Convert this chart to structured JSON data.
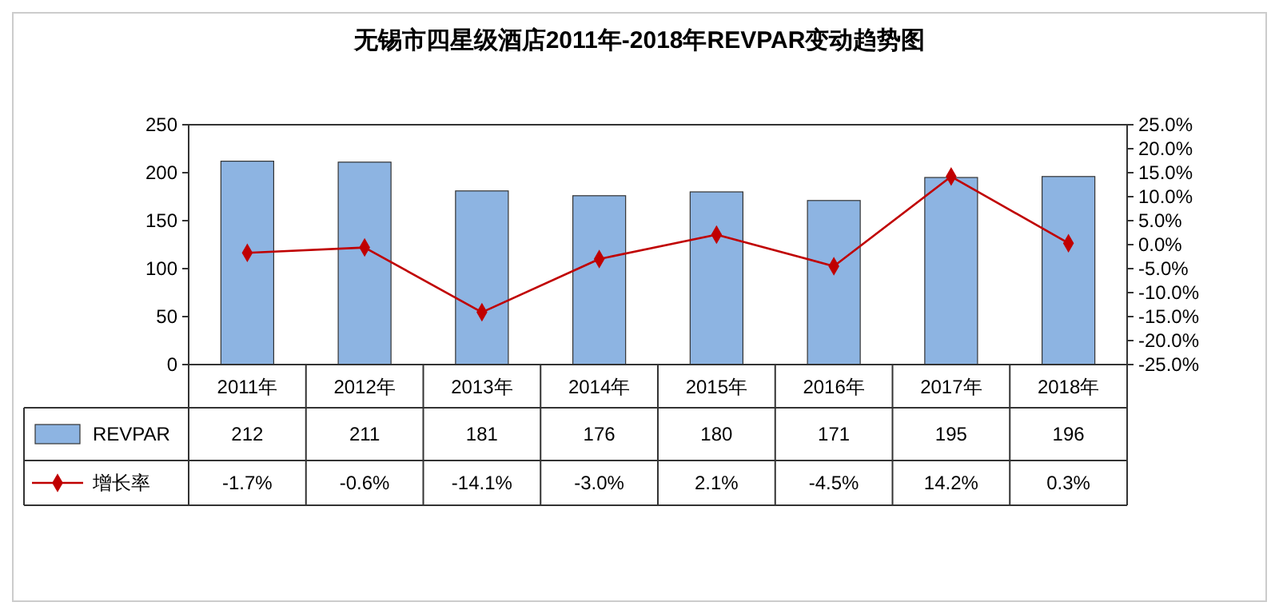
{
  "chart_data": {
    "type": "bar",
    "title": "无锡市四星级酒店2011年-2018年REVPAR变动趋势图",
    "categories": [
      "2011年",
      "2012年",
      "2013年",
      "2014年",
      "2015年",
      "2016年",
      "2017年",
      "2018年"
    ],
    "series": [
      {
        "name": "REVPAR",
        "color": "#8db4e2",
        "values": [
          212,
          211,
          181,
          176,
          180,
          171,
          195,
          196
        ],
        "value_labels": [
          "212",
          "211",
          "181",
          "176",
          "180",
          "171",
          "195",
          "196"
        ]
      },
      {
        "name": "增长率",
        "type": "line",
        "axis": "y2",
        "color": "#c00000",
        "marker": "diamond",
        "values": [
          -1.7,
          -0.6,
          -14.1,
          -3.0,
          2.1,
          -4.5,
          14.2,
          0.3
        ],
        "value_labels": [
          "-1.7%",
          "-0.6%",
          "-14.1%",
          "-3.0%",
          "2.1%",
          "-4.5%",
          "14.2%",
          "0.3%"
        ]
      }
    ],
    "ylim": [
      0,
      250
    ],
    "yticks": [
      0,
      50,
      100,
      150,
      200,
      250
    ],
    "y2lim": [
      -25,
      25
    ],
    "y2ticks": [
      {
        "value": -25,
        "label": "-25.0%"
      },
      {
        "value": -20,
        "label": "-20.0%"
      },
      {
        "value": -15,
        "label": "-15.0%"
      },
      {
        "value": -10,
        "label": "-10.0%"
      },
      {
        "value": -5,
        "label": "-5.0%"
      },
      {
        "value": 0,
        "label": "0.0%"
      },
      {
        "value": 5,
        "label": "5.0%"
      },
      {
        "value": 10,
        "label": "10.0%"
      },
      {
        "value": 15,
        "label": "15.0%"
      },
      {
        "value": 20,
        "label": "20.0%"
      },
      {
        "value": 25,
        "label": "25.0%"
      }
    ],
    "grid": false,
    "legend": "bottom left"
  }
}
